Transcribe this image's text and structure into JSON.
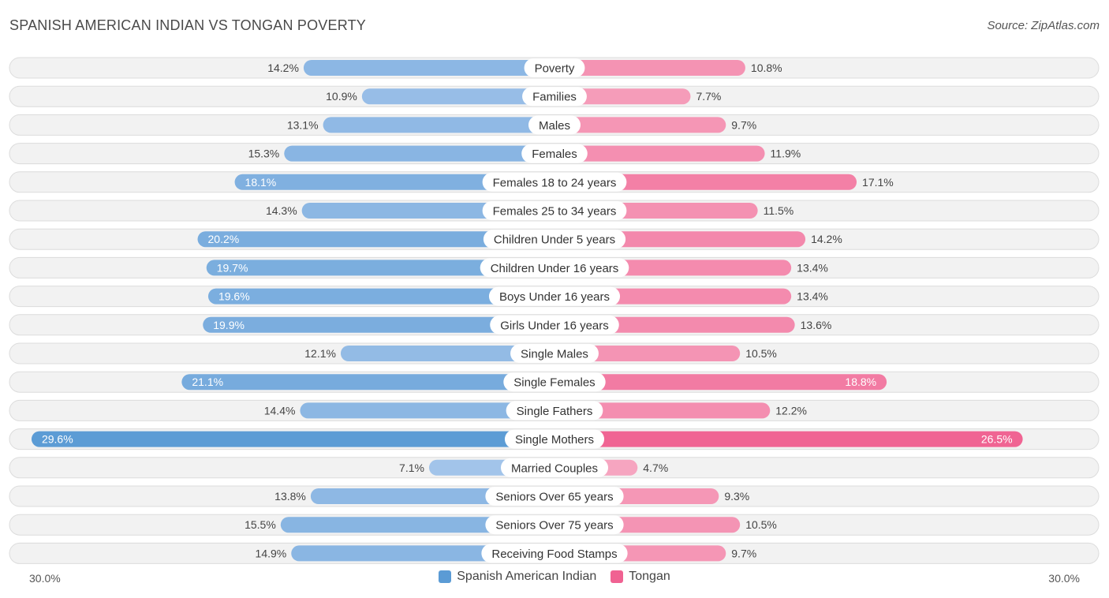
{
  "header": {
    "title": "SPANISH AMERICAN INDIAN VS TONGAN POVERTY",
    "source": "Source: ZipAtlas.com"
  },
  "axis": {
    "left_label": "30.0%",
    "right_label": "30.0%"
  },
  "legend": {
    "left": "Spanish American Indian",
    "right": "Tongan"
  },
  "colors": {
    "left": "#5b9bd5",
    "left_light": "#a9c8ec",
    "right": "#f06292",
    "right_light": "#f6a7c1"
  },
  "chart_data": {
    "type": "bar",
    "orientation": "diverging-horizontal",
    "max": 30.0,
    "categories": [
      "Poverty",
      "Families",
      "Males",
      "Females",
      "Females 18 to 24 years",
      "Females 25 to 34 years",
      "Children Under 5 years",
      "Children Under 16 years",
      "Boys Under 16 years",
      "Girls Under 16 years",
      "Single Males",
      "Single Females",
      "Single Fathers",
      "Single Mothers",
      "Married Couples",
      "Seniors Over 65 years",
      "Seniors Over 75 years",
      "Receiving Food Stamps"
    ],
    "series": [
      {
        "name": "Spanish American Indian",
        "values": [
          14.2,
          10.9,
          13.1,
          15.3,
          18.1,
          14.3,
          20.2,
          19.7,
          19.6,
          19.9,
          12.1,
          21.1,
          14.4,
          29.6,
          7.1,
          13.8,
          15.5,
          14.9
        ],
        "labels": [
          "14.2%",
          "10.9%",
          "13.1%",
          "15.3%",
          "18.1%",
          "14.3%",
          "20.2%",
          "19.7%",
          "19.6%",
          "19.9%",
          "12.1%",
          "21.1%",
          "14.4%",
          "29.6%",
          "7.1%",
          "13.8%",
          "15.5%",
          "14.9%"
        ]
      },
      {
        "name": "Tongan",
        "values": [
          10.8,
          7.7,
          9.7,
          11.9,
          17.1,
          11.5,
          14.2,
          13.4,
          13.4,
          13.6,
          10.5,
          18.8,
          12.2,
          26.5,
          4.7,
          9.3,
          10.5,
          9.7
        ],
        "labels": [
          "10.8%",
          "7.7%",
          "9.7%",
          "11.9%",
          "17.1%",
          "11.5%",
          "14.2%",
          "13.4%",
          "13.4%",
          "13.6%",
          "10.5%",
          "18.8%",
          "12.2%",
          "26.5%",
          "4.7%",
          "9.3%",
          "10.5%",
          "9.7%"
        ]
      }
    ]
  }
}
